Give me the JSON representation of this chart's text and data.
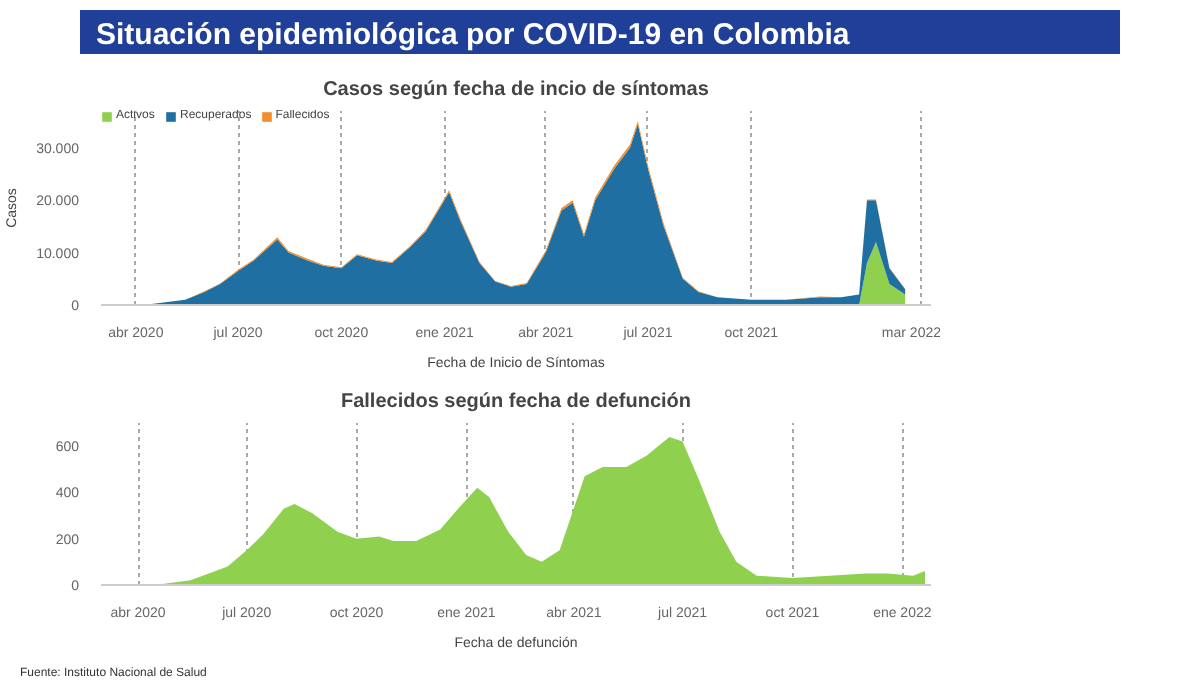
{
  "chart_data": [
    {
      "type": "area",
      "stacked": true,
      "title": "Situación epidemiológica por COVID-19 en Colombia",
      "subtitle": "Casos según fecha de incio de síntomas",
      "xlabel": "Fecha de Inicio de Síntomas",
      "ylabel": "Casos",
      "grid": "x",
      "legend": "top left",
      "x": [
        "2020-03-01",
        "2020-04-15",
        "2020-05-15",
        "2020-06-01",
        "2020-06-15",
        "2020-07-01",
        "2020-07-15",
        "2020-08-05",
        "2020-08-15",
        "2020-09-01",
        "2020-09-15",
        "2020-10-01",
        "2020-10-15",
        "2020-11-01",
        "2020-11-15",
        "2020-12-01",
        "2020-12-15",
        "2021-01-05",
        "2021-01-15",
        "2021-02-01",
        "2021-02-15",
        "2021-03-01",
        "2021-03-15",
        "2021-04-01",
        "2021-04-15",
        "2021-04-25",
        "2021-05-05",
        "2021-05-15",
        "2021-06-01",
        "2021-06-15",
        "2021-06-22",
        "2021-07-01",
        "2021-07-15",
        "2021-08-01",
        "2021-08-15",
        "2021-09-01",
        "2021-10-01",
        "2021-11-01",
        "2021-12-01",
        "2021-12-20",
        "2022-01-05",
        "2022-01-12",
        "2022-01-20",
        "2022-02-01",
        "2022-02-15"
      ],
      "series": [
        {
          "name": "Activos",
          "color": "#8fd14f",
          "values": [
            0,
            0,
            0,
            0,
            0,
            0,
            0,
            0,
            0,
            0,
            0,
            0,
            0,
            0,
            0,
            0,
            0,
            0,
            0,
            0,
            0,
            0,
            0,
            0,
            0,
            0,
            0,
            0,
            0,
            0,
            0,
            0,
            0,
            0,
            0,
            0,
            0,
            0,
            0,
            0,
            0,
            8000,
            12000,
            4000,
            2000
          ]
        },
        {
          "name": "Recuperados",
          "color": "#1f6fa3",
          "values": [
            0,
            200,
            1000,
            2500,
            4000,
            6500,
            8500,
            12500,
            10000,
            8500,
            7500,
            7000,
            9500,
            8500,
            8000,
            11000,
            14000,
            21500,
            16000,
            8000,
            4500,
            3500,
            4000,
            10000,
            18000,
            19500,
            13000,
            20000,
            26000,
            30000,
            34500,
            26000,
            15000,
            5000,
            2500,
            1500,
            1000,
            1000,
            1500,
            1500,
            2000,
            12000,
            8000,
            3000,
            1000
          ]
        },
        {
          "name": "Fallecidos",
          "color": "#f28e2b",
          "values": [
            0,
            0,
            0,
            100,
            100,
            200,
            200,
            400,
            300,
            300,
            200,
            200,
            200,
            200,
            200,
            200,
            300,
            400,
            400,
            200,
            100,
            100,
            200,
            400,
            500,
            500,
            500,
            500,
            600,
            600,
            600,
            600,
            500,
            200,
            100,
            0,
            0,
            0,
            100,
            0,
            0,
            100,
            100,
            100,
            100
          ]
        }
      ],
      "xlim": [
        "2020-03-01",
        "2022-03-10"
      ],
      "xticks": [
        {
          "value": "2020-04-01",
          "label": "abr 2020"
        },
        {
          "value": "2020-07-01",
          "label": "jul 2020"
        },
        {
          "value": "2020-10-01",
          "label": "oct 2020"
        },
        {
          "value": "2021-01-01",
          "label": "ene 2021"
        },
        {
          "value": "2021-04-01",
          "label": "abr 2021"
        },
        {
          "value": "2021-07-01",
          "label": "jul 2021"
        },
        {
          "value": "2021-10-01",
          "label": "oct 2021"
        },
        {
          "value": "2022-03-01",
          "label": "mar 2022"
        }
      ],
      "ylim": [
        0,
        37000
      ],
      "yticks": [
        0,
        {
          "value": 10000,
          "label": "10.000"
        },
        {
          "value": 20000,
          "label": "20.000"
        },
        {
          "value": 30000,
          "label": "30.000"
        }
      ]
    },
    {
      "type": "area",
      "title": "Fallecidos según fecha de defunción",
      "xlabel": "Fecha de defunción",
      "grid": "x",
      "x": [
        "2020-03-10",
        "2020-04-15",
        "2020-05-15",
        "2020-06-15",
        "2020-07-01",
        "2020-07-15",
        "2020-08-01",
        "2020-08-10",
        "2020-08-25",
        "2020-09-15",
        "2020-10-01",
        "2020-10-20",
        "2020-11-01",
        "2020-11-20",
        "2020-12-10",
        "2020-12-25",
        "2021-01-10",
        "2021-01-20",
        "2021-02-05",
        "2021-02-20",
        "2021-03-05",
        "2021-03-20",
        "2021-04-10",
        "2021-04-25",
        "2021-05-15",
        "2021-06-01",
        "2021-06-20",
        "2021-07-01",
        "2021-07-15",
        "2021-08-01",
        "2021-08-15",
        "2021-09-01",
        "2021-10-01",
        "2021-11-01",
        "2021-12-01",
        "2021-12-20",
        "2022-01-10",
        "2022-01-20"
      ],
      "series": [
        {
          "color": "#8fd14f",
          "values": [
            0,
            0,
            20,
            80,
            150,
            220,
            330,
            350,
            310,
            230,
            200,
            210,
            190,
            190,
            240,
            330,
            420,
            380,
            230,
            130,
            100,
            150,
            470,
            510,
            510,
            560,
            640,
            620,
            450,
            230,
            100,
            40,
            30,
            40,
            50,
            50,
            40,
            60
          ]
        }
      ],
      "xlim": [
        "2020-03-01",
        "2022-01-25"
      ],
      "xticks": [
        {
          "value": "2020-04-01",
          "label": "abr 2020"
        },
        {
          "value": "2020-07-01",
          "label": "jul 2020"
        },
        {
          "value": "2020-10-01",
          "label": "oct 2020"
        },
        {
          "value": "2021-01-01",
          "label": "ene 2021"
        },
        {
          "value": "2021-04-01",
          "label": "abr 2021"
        },
        {
          "value": "2021-07-01",
          "label": "jul 2021"
        },
        {
          "value": "2021-10-01",
          "label": "oct 2021"
        },
        {
          "value": "2022-01-01",
          "label": "ene 2022"
        }
      ],
      "ylim": [
        0,
        700
      ],
      "yticks": [
        0,
        200,
        400,
        600
      ],
      "annotations": [
        "Fuente: Instituto Nacional de Salud"
      ]
    }
  ]
}
